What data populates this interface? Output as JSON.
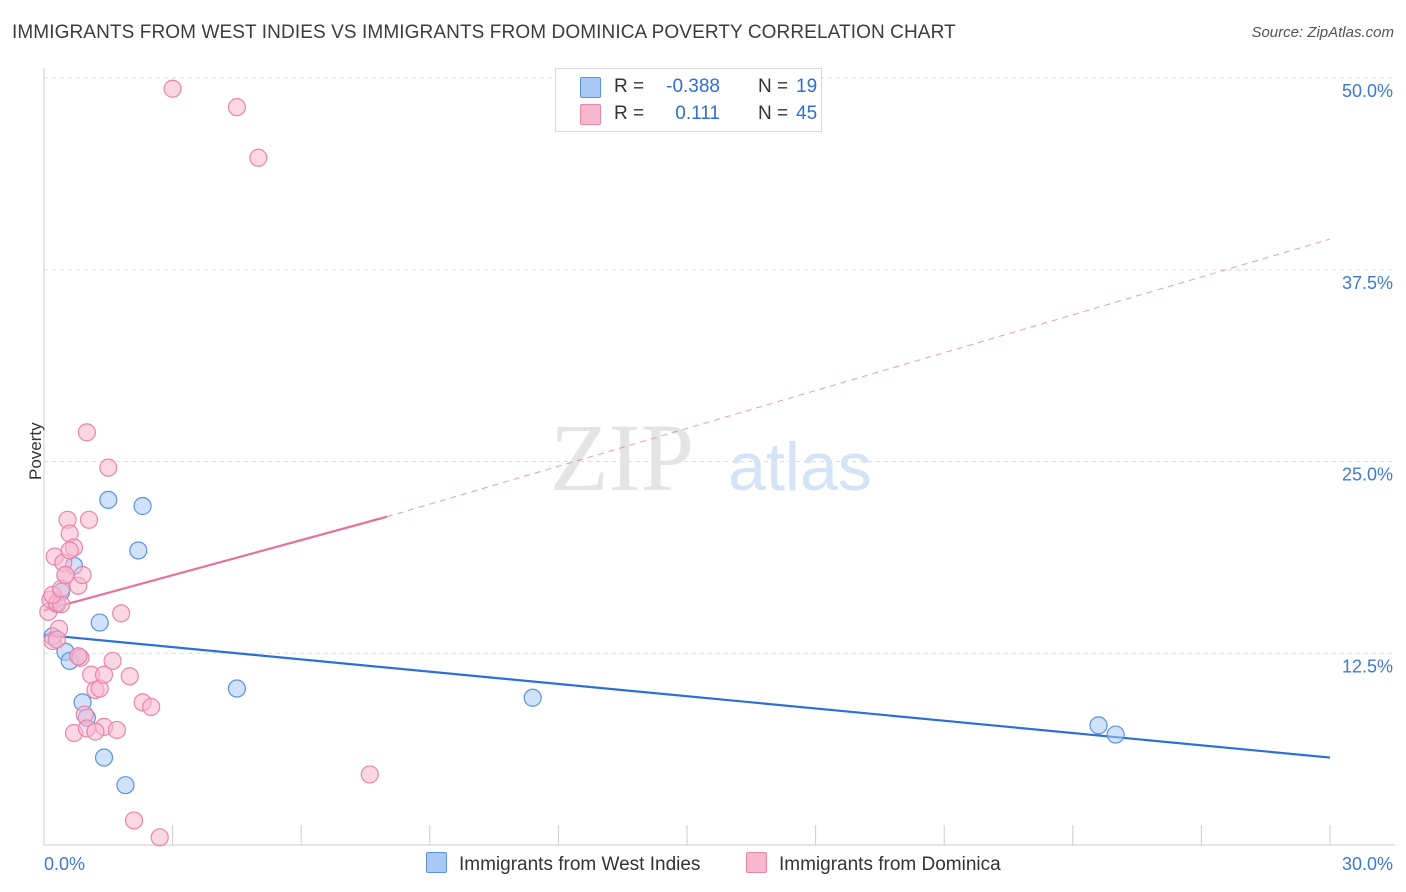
{
  "title": "IMMIGRANTS FROM WEST INDIES VS IMMIGRANTS FROM DOMINICA POVERTY CORRELATION CHART",
  "source": "Source: ZipAtlas.com",
  "watermark": {
    "zip": "ZIP",
    "atlas": "atlas"
  },
  "legend": {
    "rows": [
      {
        "r_label": "R =",
        "r_value": "-0.388",
        "n_label": "N =",
        "n_value": "19",
        "color": "#a9c8f5"
      },
      {
        "r_label": "R =",
        "r_value": "0.111",
        "n_label": "N =",
        "n_value": "45",
        "color": "#f7b7cd"
      }
    ]
  },
  "bottom_legend": {
    "series1": "Immigrants from West Indies",
    "series2": "Immigrants from Dominica"
  },
  "chart_data": {
    "type": "scatter",
    "title": "IMMIGRANTS FROM WEST INDIES VS IMMIGRANTS FROM DOMINICA POVERTY CORRELATION CHART",
    "xlabel": "",
    "ylabel": "Poverty",
    "xlim": [
      0,
      30
    ],
    "ylim": [
      0,
      50
    ],
    "x_tick_labels": [
      "0.0%",
      "30.0%"
    ],
    "y_ticks": [
      12.5,
      25.0,
      37.5,
      50.0
    ],
    "y_tick_labels": [
      "12.5%",
      "25.0%",
      "37.5%",
      "50.0%"
    ],
    "grid": true,
    "series": [
      {
        "name": "Immigrants from West Indies",
        "color": "#5b93df",
        "fill": "#a9c8f5",
        "line_color": "#2c6fd6",
        "x": [
          0.2,
          0.3,
          0.4,
          0.5,
          0.6,
          0.7,
          0.8,
          0.9,
          1.0,
          1.3,
          1.4,
          1.5,
          1.9,
          2.2,
          2.3,
          4.5,
          11.4,
          24.6,
          25.0
        ],
        "y": [
          13.6,
          15.7,
          16.5,
          12.6,
          12.0,
          18.2,
          12.3,
          9.3,
          8.3,
          14.5,
          5.7,
          22.5,
          3.9,
          19.2,
          22.1,
          10.2,
          9.6,
          7.8,
          7.2
        ],
        "trend": {
          "x": [
            0,
            30
          ],
          "y": [
            13.7,
            5.7
          ]
        }
      },
      {
        "name": "Immigrants from Dominica",
        "color": "#e985a9",
        "fill": "#f7b7cd",
        "line_color": "#e4719a",
        "x": [
          0.1,
          0.15,
          0.2,
          0.25,
          0.3,
          0.35,
          0.4,
          0.45,
          0.5,
          0.55,
          0.6,
          0.7,
          0.8,
          0.85,
          0.9,
          0.95,
          1.0,
          1.05,
          1.1,
          1.2,
          1.3,
          1.4,
          1.5,
          1.6,
          1.7,
          1.8,
          2.0,
          2.1,
          2.3,
          2.5,
          2.7,
          3.0,
          4.5,
          5.0,
          7.6,
          0.2,
          0.3,
          0.4,
          0.5,
          0.6,
          0.7,
          0.8,
          1.0,
          1.2,
          1.4
        ],
        "y": [
          15.2,
          16.0,
          13.3,
          18.8,
          15.8,
          14.1,
          15.7,
          18.4,
          17.6,
          21.2,
          20.3,
          19.4,
          16.9,
          12.2,
          17.6,
          8.5,
          26.9,
          21.2,
          11.1,
          10.1,
          10.2,
          7.7,
          24.6,
          12.0,
          7.5,
          15.1,
          11.0,
          1.6,
          9.3,
          9.0,
          0.5,
          49.3,
          48.1,
          44.8,
          4.6,
          16.3,
          13.4,
          16.7,
          17.6,
          19.2,
          7.3,
          12.3,
          7.6,
          7.4,
          11.1
        ],
        "trend": {
          "x": [
            0,
            8
          ],
          "y": [
            15.3,
            21.4
          ]
        },
        "trend_extension": {
          "x": [
            8,
            30
          ],
          "y": [
            21.4,
            39.5
          ]
        }
      }
    ]
  }
}
